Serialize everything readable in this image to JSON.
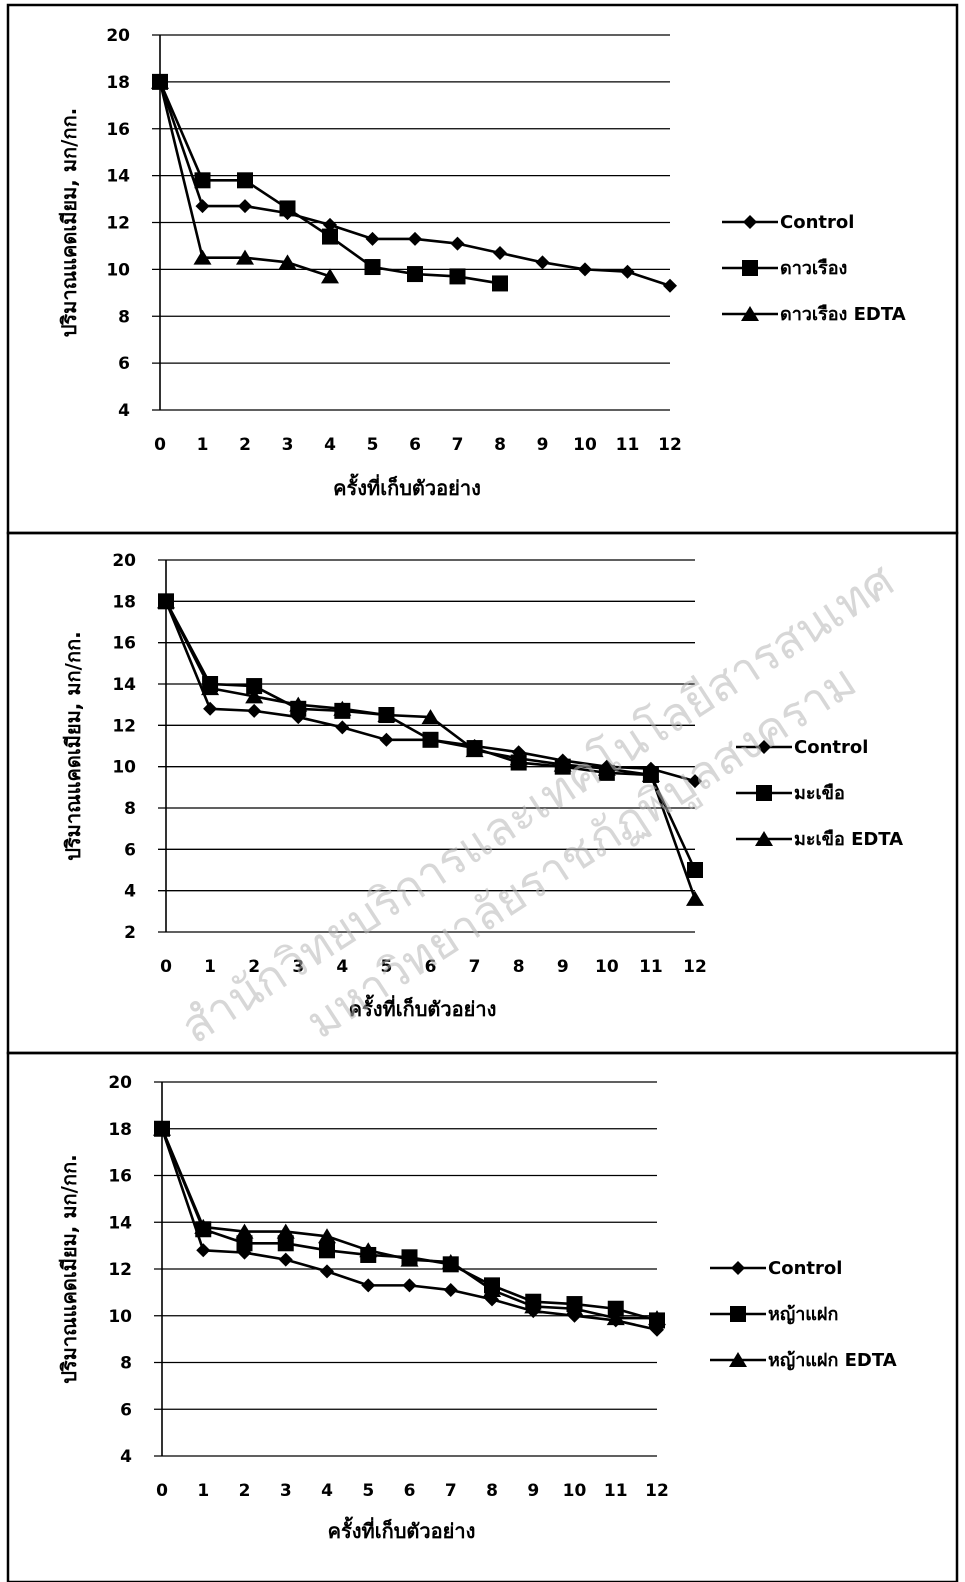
{
  "chart_data": [
    {
      "type": "line",
      "xlabel": "ครั้งที่เก็บตัวอย่าง",
      "ylabel": "ปริมาณแคดเมียม, มก/กก.",
      "ylim": [
        4,
        20
      ],
      "yticks": [
        4,
        6,
        8,
        10,
        12,
        14,
        16,
        18,
        20
      ],
      "x": [
        0,
        1,
        2,
        3,
        4,
        5,
        6,
        7,
        8,
        9,
        10,
        11,
        12
      ],
      "grid": true,
      "legend_position": "right",
      "series": [
        {
          "name": "Control",
          "marker": "diamond",
          "values": [
            18,
            12.7,
            12.7,
            12.4,
            11.9,
            11.3,
            11.3,
            11.1,
            10.7,
            10.3,
            10.0,
            9.9,
            9.3
          ]
        },
        {
          "name": "ดาวเรือง",
          "marker": "square",
          "values": [
            18,
            13.8,
            13.8,
            12.6,
            11.4,
            10.1,
            9.8,
            9.7,
            9.4,
            null,
            null,
            null,
            null
          ]
        },
        {
          "name": "ดาวเรือง EDTA",
          "marker": "triangle",
          "values": [
            18,
            10.5,
            10.5,
            10.3,
            9.7,
            null,
            null,
            null,
            null,
            null,
            null,
            null,
            null
          ]
        }
      ]
    },
    {
      "type": "line",
      "xlabel": "ครั้งที่เก็บตัวอย่าง",
      "ylabel": "ปริมาณแคดเมียม, มก/กก.",
      "ylim": [
        2,
        20
      ],
      "yticks": [
        2,
        4,
        6,
        8,
        10,
        12,
        14,
        16,
        18,
        20
      ],
      "x": [
        0,
        1,
        2,
        3,
        4,
        5,
        6,
        7,
        8,
        9,
        10,
        11,
        12
      ],
      "grid": true,
      "legend_position": "right",
      "series": [
        {
          "name": "Control",
          "marker": "diamond",
          "values": [
            18,
            12.8,
            12.7,
            12.4,
            11.9,
            11.3,
            11.3,
            11.0,
            10.7,
            10.3,
            10.0,
            9.9,
            9.3
          ]
        },
        {
          "name": "มะเขือ",
          "marker": "square",
          "values": [
            18,
            14.0,
            13.9,
            12.8,
            12.7,
            12.5,
            11.3,
            10.9,
            10.2,
            10.0,
            9.7,
            9.6,
            5.0
          ]
        },
        {
          "name": "มะเขือ EDTA",
          "marker": "triangle",
          "values": [
            18,
            13.8,
            13.4,
            13.0,
            12.8,
            12.5,
            12.4,
            10.8,
            10.4,
            10.1,
            9.9,
            9.6,
            3.6
          ]
        }
      ]
    },
    {
      "type": "line",
      "xlabel": "ครั้งที่เก็บตัวอย่าง",
      "ylabel": "ปริมาณแคดเมียม, มก/กก.",
      "ylim": [
        4,
        20
      ],
      "yticks": [
        4,
        6,
        8,
        10,
        12,
        14,
        16,
        18,
        20
      ],
      "x": [
        0,
        1,
        2,
        3,
        4,
        5,
        6,
        7,
        8,
        9,
        10,
        11,
        12
      ],
      "grid": true,
      "legend_position": "right",
      "series": [
        {
          "name": "Control",
          "marker": "diamond",
          "values": [
            18,
            12.8,
            12.7,
            12.4,
            11.9,
            11.3,
            11.3,
            11.1,
            10.7,
            10.2,
            10.0,
            9.8,
            9.4
          ]
        },
        {
          "name": "หญ้าแฝก",
          "marker": "square",
          "values": [
            18,
            13.7,
            13.1,
            13.1,
            12.8,
            12.6,
            12.5,
            12.2,
            11.3,
            10.6,
            10.5,
            10.3,
            9.8
          ]
        },
        {
          "name": "หญ้าแฝก EDTA",
          "marker": "triangle",
          "values": [
            18,
            13.8,
            13.6,
            13.6,
            13.4,
            12.8,
            12.4,
            12.3,
            11.1,
            10.4,
            10.3,
            9.9,
            9.9
          ]
        }
      ]
    }
  ],
  "watermark": {
    "line1": "สำนักวิทยบริการและเทคโนโลยีสารสนเทศ",
    "line2": "มหาวิทยาลัยราชภัฏพิบูลสงคราม"
  },
  "colors": {
    "line": "#000000",
    "grid": "#000000",
    "background": "#ffffff",
    "watermark": "#b8b8b8"
  }
}
